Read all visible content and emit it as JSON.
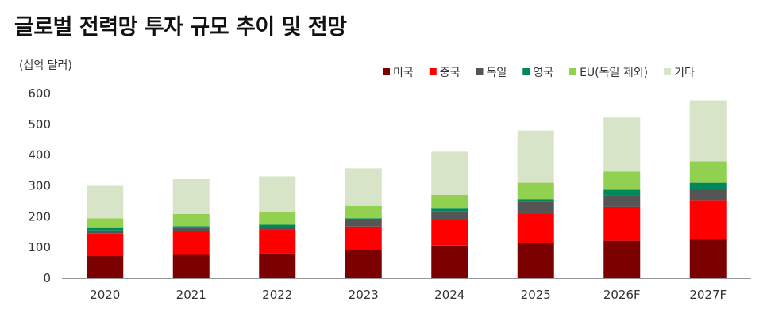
{
  "chart_data": {
    "type": "bar",
    "stacked": true,
    "title": "글로벌 전력망 투자 규모 추이 및 전망",
    "unit_label": "(십억 달러)",
    "categories": [
      "2020",
      "2021",
      "2022",
      "2023",
      "2024",
      "2025",
      "2026F",
      "2027F"
    ],
    "ylim": [
      0,
      600
    ],
    "yticks": [
      0,
      100,
      200,
      300,
      400,
      500,
      600
    ],
    "grid": false,
    "legend_position": "top-right",
    "series": [
      {
        "name": "미국",
        "color": "#7b0000",
        "values": [
          72,
          76,
          80,
          92,
          106,
          115,
          122,
          126
        ]
      },
      {
        "name": "중국",
        "color": "#ff0000",
        "values": [
          73,
          78,
          77,
          76,
          83,
          96,
          110,
          128
        ]
      },
      {
        "name": "독일",
        "color": "#555555",
        "values": [
          10,
          10,
          10,
          20,
          28,
          37,
          36,
          35
        ]
      },
      {
        "name": "영국",
        "color": "#00875a",
        "values": [
          8,
          5,
          7,
          7,
          9,
          9,
          19,
          21
        ]
      },
      {
        "name": "EU(독일 제외)",
        "color": "#92d050",
        "values": [
          32,
          40,
          40,
          40,
          45,
          53,
          60,
          70
        ]
      },
      {
        "name": "기타",
        "color": "#d8e4c7",
        "values": [
          105,
          113,
          117,
          122,
          140,
          170,
          175,
          198
        ]
      }
    ]
  }
}
